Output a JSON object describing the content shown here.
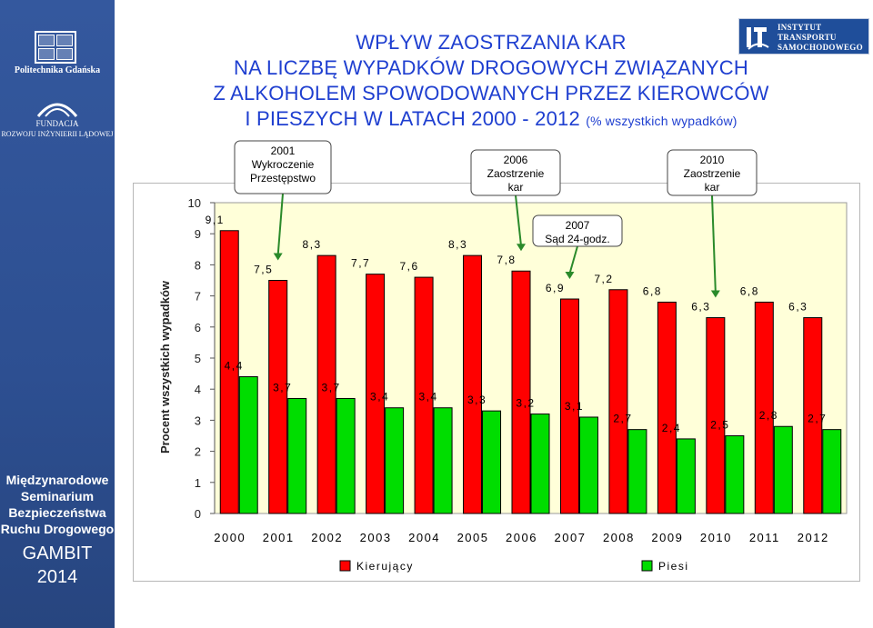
{
  "sidebar": {
    "university": "Politechnika Gdańska",
    "foundation_line1": "FUNDACJA",
    "foundation_line2": "ROZWOJU INŻYNIERII LĄDOWEJ",
    "seminar": [
      "Międzynarodowe",
      "Seminarium",
      "Bezpieczeństwa",
      "Ruchu Drogowego"
    ],
    "event": "GAMBIT",
    "year": "2014"
  },
  "logo_its": {
    "line1": "INSTYTUT",
    "line2": "TRANSPORTU",
    "line3": "SAMOCHODOWEGO"
  },
  "title": {
    "line1": "WPŁYW ZAOSTRZANIA KAR",
    "line2": "NA LICZBĘ WYPADKÓW DROGOWYCH ZWIĄZANYCH",
    "line3": "Z ALKOHOLEM SPOWODOWANYCH PRZEZ KIEROWCÓW",
    "line4_main": "I PIESZYCH W LATACH 2000 - 2012",
    "line4_sub": "(% wszystkich wypadków)"
  },
  "colors": {
    "title": "#1f3fd0",
    "sidebar": "#2f5496",
    "plot_bg": "#ffffd9",
    "driver_bar": "#ff0000",
    "pedestrian_bar": "#00dd00"
  },
  "chart_data": {
    "type": "bar",
    "categories": [
      "2000",
      "2001",
      "2002",
      "2003",
      "2004",
      "2005",
      "2006",
      "2007",
      "2008",
      "2009",
      "2010",
      "2011",
      "2012"
    ],
    "series": [
      {
        "name": "Kierujący",
        "values": [
          9.1,
          7.5,
          8.3,
          7.7,
          7.6,
          8.3,
          7.8,
          6.9,
          7.2,
          6.8,
          6.3,
          6.8,
          6.3
        ],
        "labels": [
          "9,1",
          "7,5",
          "8,3",
          "7,7",
          "7,6",
          "8,3",
          "7,8",
          "6,9",
          "7,2",
          "6,8",
          "6,3",
          "6,8",
          "6,3"
        ]
      },
      {
        "name": "Piesi",
        "values": [
          4.4,
          3.7,
          3.7,
          3.4,
          3.4,
          3.3,
          3.2,
          3.1,
          2.7,
          2.4,
          2.5,
          2.8,
          2.7
        ],
        "labels": [
          "4,4",
          "3,7",
          "3,7",
          "3,4",
          "3,4",
          "3,3",
          "3,2",
          "3,1",
          "2,7",
          "2,4",
          "2,5",
          "2,8",
          "2,7"
        ]
      }
    ],
    "ylabel": "Procent wszystkich wypadków",
    "ylim": [
      0,
      10
    ],
    "yticks": [
      "0",
      "1",
      "2",
      "3",
      "4",
      "5",
      "6",
      "7",
      "8",
      "9",
      "10"
    ],
    "legend_position": "bottom",
    "annotations": [
      {
        "year": "2001",
        "lines": [
          "2001",
          "Wykroczenie",
          "Przestępstwo"
        ]
      },
      {
        "year": "2006",
        "lines": [
          "2006",
          "Zaostrzenie",
          "kar"
        ]
      },
      {
        "year": "2007",
        "lines": [
          "2007",
          "Sąd 24-godz."
        ]
      },
      {
        "year": "2010",
        "lines": [
          "2010",
          "Zaostrzenie",
          "kar"
        ]
      }
    ]
  }
}
